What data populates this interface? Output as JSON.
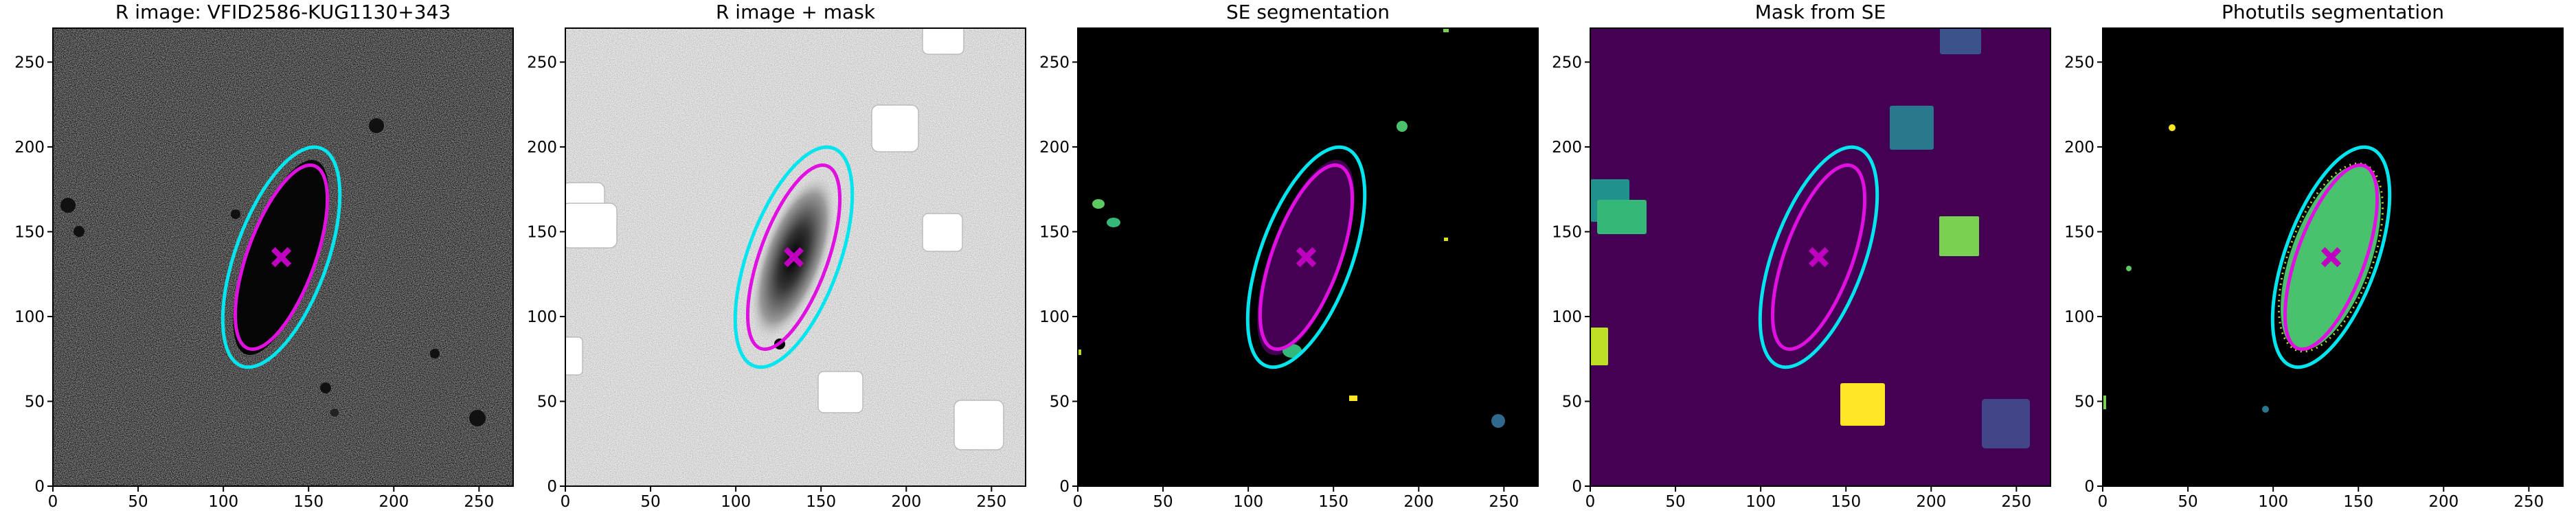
{
  "chart_data": [
    {
      "type": "image",
      "title": "R image: VFID2586-KUG1130+343",
      "xlim": [
        0,
        270
      ],
      "ylim": [
        0,
        270
      ],
      "xticks": [
        0,
        50,
        100,
        150,
        200,
        250
      ],
      "yticks": [
        0,
        50,
        100,
        150,
        200,
        250
      ],
      "ellipses": [
        {
          "color": "#00e5ee",
          "x": 134,
          "y": 135,
          "a": 68,
          "b": 27,
          "angle": 70
        },
        {
          "color": "#e010e0",
          "x": 134,
          "y": 135,
          "a": 57,
          "b": 20,
          "angle": 70
        }
      ],
      "center": {
        "color": "#c000c0",
        "x": 134,
        "y": 135
      }
    },
    {
      "type": "image",
      "title": "R image + mask",
      "xlim": [
        0,
        270
      ],
      "ylim": [
        0,
        270
      ],
      "xticks": [
        0,
        50,
        100,
        150,
        200,
        250
      ],
      "yticks": [
        0,
        50,
        100,
        150,
        200,
        250
      ],
      "ellipses": [
        {
          "color": "#00e5ee",
          "x": 134,
          "y": 135,
          "a": 68,
          "b": 27,
          "angle": 70
        },
        {
          "color": "#e010e0",
          "x": 134,
          "y": 135,
          "a": 57,
          "b": 20,
          "angle": 70
        }
      ],
      "center": {
        "color": "#c000c0",
        "x": 134,
        "y": 135
      }
    },
    {
      "type": "image",
      "title": "SE segmentation",
      "xlim": [
        0,
        270
      ],
      "ylim": [
        0,
        270
      ],
      "xticks": [
        0,
        50,
        100,
        150,
        200,
        250
      ],
      "yticks": [
        0,
        50,
        100,
        150,
        200,
        250
      ],
      "ellipses": [
        {
          "color": "#00e5ee",
          "x": 134,
          "y": 135,
          "a": 68,
          "b": 27,
          "angle": 70
        },
        {
          "color": "#e010e0",
          "x": 134,
          "y": 135,
          "a": 57,
          "b": 20,
          "angle": 70
        }
      ],
      "center": {
        "color": "#c000c0",
        "x": 134,
        "y": 135
      }
    },
    {
      "type": "image",
      "title": "Mask from SE",
      "xlim": [
        0,
        270
      ],
      "ylim": [
        0,
        270
      ],
      "xticks": [
        0,
        50,
        100,
        150,
        200,
        250
      ],
      "yticks": [
        0,
        50,
        100,
        150,
        200,
        250
      ],
      "ellipses": [
        {
          "color": "#00e5ee",
          "x": 134,
          "y": 135,
          "a": 68,
          "b": 27,
          "angle": 70
        },
        {
          "color": "#e010e0",
          "x": 134,
          "y": 135,
          "a": 57,
          "b": 20,
          "angle": 70
        }
      ],
      "center": {
        "color": "#c000c0",
        "x": 134,
        "y": 135
      }
    },
    {
      "type": "image",
      "title": "Photutils segmentation",
      "xlim": [
        0,
        270
      ],
      "ylim": [
        0,
        270
      ],
      "xticks": [
        0,
        50,
        100,
        150,
        200,
        250
      ],
      "yticks": [
        0,
        50,
        100,
        150,
        200,
        250
      ],
      "ellipses": [
        {
          "color": "#00e5ee",
          "x": 134,
          "y": 135,
          "a": 68,
          "b": 27,
          "angle": 70
        },
        {
          "color": "#e010e0",
          "x": 134,
          "y": 135,
          "a": 57,
          "b": 20,
          "angle": 70
        }
      ],
      "center": {
        "color": "#c000c0",
        "x": 134,
        "y": 135
      }
    }
  ]
}
